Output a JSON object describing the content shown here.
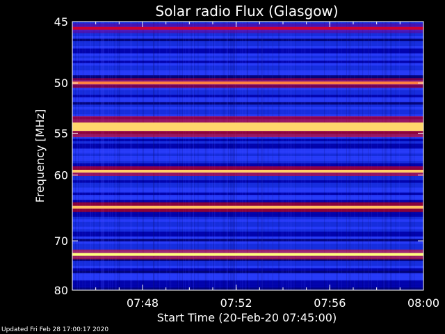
{
  "chart_data": {
    "type": "heatmap",
    "title": "Solar radio Flux (Glasgow)",
    "xlabel": "Start Time (20-Feb-20 07:45:00)",
    "ylabel": "Frequency [MHz]",
    "x_range": [
      "07:45:00",
      "08:00:00"
    ],
    "ylim": [
      80,
      45
    ],
    "x_ticks": [
      "07:48",
      "07:52",
      "07:56",
      "08:00"
    ],
    "y_ticks": [
      45,
      50,
      55,
      60,
      70,
      80
    ],
    "bands": [
      {
        "freq_mhz": 45.5,
        "intensity": 0.4
      },
      {
        "freq_mhz": 50.0,
        "intensity": 0.75
      },
      {
        "freq_mhz": 54.3,
        "intensity": 0.92
      },
      {
        "freq_mhz": 59.5,
        "intensity": 0.9
      },
      {
        "freq_mhz": 64.5,
        "intensity": 0.88
      },
      {
        "freq_mhz": 72.5,
        "intensity": 1.0
      }
    ],
    "colormap": [
      "#0000ff",
      "#ff0000",
      "#ffff80"
    ]
  },
  "footer_text": "Updated Fri Feb 28 17:00:17 2020"
}
